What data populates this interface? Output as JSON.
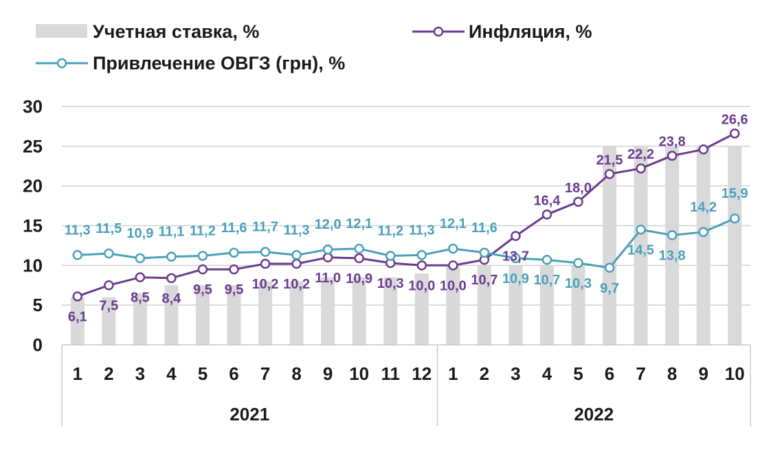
{
  "chart_data": {
    "type": "bar+line",
    "categories": [
      "1",
      "2",
      "3",
      "4",
      "5",
      "6",
      "7",
      "8",
      "9",
      "10",
      "11",
      "12",
      "1",
      "2",
      "3",
      "4",
      "5",
      "6",
      "7",
      "8",
      "9",
      "10"
    ],
    "year_groups": [
      {
        "label": "2021",
        "count": 12
      },
      {
        "label": "2022",
        "count": 10
      }
    ],
    "ylim": [
      0,
      30
    ],
    "yticks": [
      "0",
      "5",
      "10",
      "15",
      "20",
      "25",
      "30"
    ],
    "grid": true,
    "legend_position": "top",
    "series": [
      {
        "name": "Учетная ставка, %",
        "type": "bar",
        "color": "#d9d9d9",
        "values": [
          6.0,
          6.0,
          6.5,
          7.5,
          7.5,
          7.5,
          8.0,
          8.0,
          8.5,
          8.5,
          8.5,
          9.0,
          10.0,
          10.0,
          10.0,
          10.0,
          10.0,
          25.0,
          25.0,
          25.0,
          25.0,
          25.0
        ]
      },
      {
        "name": "Инфляция, %",
        "type": "line",
        "color": "#6a3b8e",
        "values": [
          6.1,
          7.5,
          8.5,
          8.4,
          9.5,
          9.5,
          10.2,
          10.2,
          11.0,
          10.9,
          10.3,
          10.0,
          10.0,
          10.7,
          13.7,
          16.4,
          18.0,
          21.5,
          22.2,
          23.8,
          24.6,
          26.6
        ],
        "labels": [
          "6,1",
          "7,5",
          "8,5",
          "8,4",
          "9,5",
          "9,5",
          "10,2",
          "10,2",
          "11,0",
          "10,9",
          "10,3",
          "10,0",
          "10,0",
          "10,7",
          "13,7",
          "16,4",
          "18,0",
          "21,5",
          "22,2",
          "23,8",
          "",
          "26,6"
        ]
      },
      {
        "name": "Привлечение ОВГЗ (грн), %",
        "type": "line",
        "color": "#4aa0ba",
        "values": [
          11.3,
          11.5,
          10.9,
          11.1,
          11.2,
          11.6,
          11.7,
          11.3,
          12.0,
          12.1,
          11.2,
          11.3,
          12.1,
          11.6,
          10.9,
          10.7,
          10.3,
          9.7,
          14.5,
          13.8,
          14.2,
          15.9
        ],
        "labels": [
          "11,3",
          "11,5",
          "10,9",
          "11,1",
          "11,2",
          "11,6",
          "11,7",
          "11,3",
          "12,0",
          "12,1",
          "11,2",
          "11,3",
          "12,1",
          "11,6",
          "10,9",
          "10,7",
          "10,3",
          "9,7",
          "14,5",
          "13,8",
          "14,2",
          "15,9"
        ]
      }
    ]
  }
}
